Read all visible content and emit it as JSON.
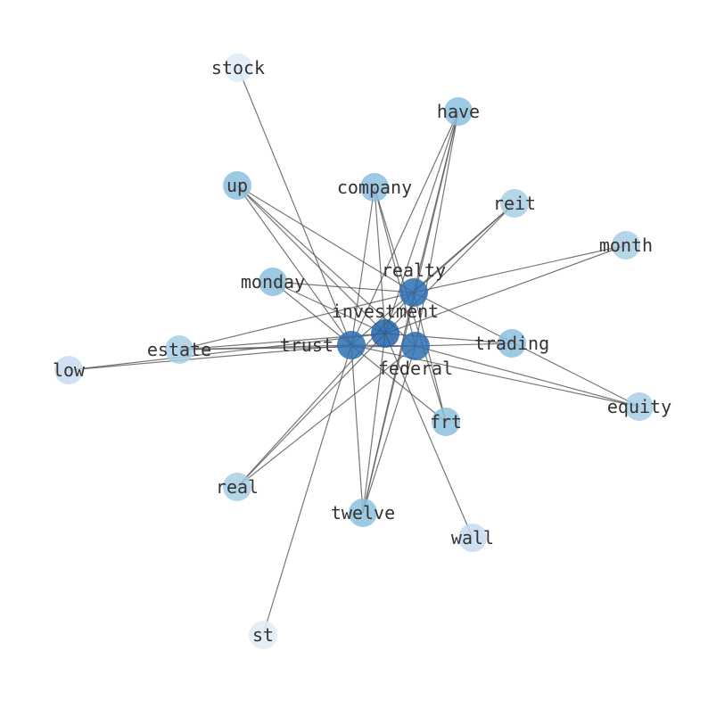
{
  "graph": {
    "nodes": [
      {
        "id": "stock",
        "label": "stock",
        "color": "#deebf7"
      },
      {
        "id": "have",
        "label": "have",
        "color": "#8dc0de"
      },
      {
        "id": "up",
        "label": "up",
        "color": "#8dc0de"
      },
      {
        "id": "company",
        "label": "company",
        "color": "#8dc0de"
      },
      {
        "id": "reit",
        "label": "reit",
        "color": "#a8cee4"
      },
      {
        "id": "month",
        "label": "month",
        "color": "#a8cee4"
      },
      {
        "id": "monday",
        "label": "monday",
        "color": "#8dc0de"
      },
      {
        "id": "realty",
        "label": "realty",
        "color": "#2e6eb0"
      },
      {
        "id": "investment",
        "label": "investment",
        "color": "#2462a6"
      },
      {
        "id": "trust",
        "label": "trust",
        "color": "#2e6eb0"
      },
      {
        "id": "federal",
        "label": "federal",
        "color": "#2e6eb0"
      },
      {
        "id": "trading",
        "label": "trading",
        "color": "#8dc0de"
      },
      {
        "id": "estate",
        "label": "estate",
        "color": "#a8cee4"
      },
      {
        "id": "low",
        "label": "low",
        "color": "#c6dbef"
      },
      {
        "id": "frt",
        "label": "frt",
        "color": "#8dc0de"
      },
      {
        "id": "equity",
        "label": "equity",
        "color": "#a8cee4"
      },
      {
        "id": "real",
        "label": "real",
        "color": "#a8cee4"
      },
      {
        "id": "twelve",
        "label": "twelve",
        "color": "#8dc0de"
      },
      {
        "id": "wall",
        "label": "wall",
        "color": "#c6dbef"
      },
      {
        "id": "st",
        "label": "st",
        "color": "#deebf7"
      }
    ],
    "edges": [
      [
        "stock",
        "trust"
      ],
      [
        "have",
        "realty"
      ],
      [
        "have",
        "investment"
      ],
      [
        "have",
        "federal"
      ],
      [
        "have",
        "trust"
      ],
      [
        "have",
        "twelve"
      ],
      [
        "up",
        "realty"
      ],
      [
        "up",
        "investment"
      ],
      [
        "up",
        "trust"
      ],
      [
        "up",
        "federal"
      ],
      [
        "company",
        "investment"
      ],
      [
        "company",
        "federal"
      ],
      [
        "company",
        "trust"
      ],
      [
        "company",
        "frt"
      ],
      [
        "reit",
        "realty"
      ],
      [
        "reit",
        "investment"
      ],
      [
        "reit",
        "trust"
      ],
      [
        "month",
        "realty"
      ],
      [
        "month",
        "investment"
      ],
      [
        "monday",
        "realty"
      ],
      [
        "monday",
        "investment"
      ],
      [
        "monday",
        "trust"
      ],
      [
        "realty",
        "equity"
      ],
      [
        "realty",
        "frt"
      ],
      [
        "realty",
        "twelve"
      ],
      [
        "realty",
        "real"
      ],
      [
        "realty",
        "estate"
      ],
      [
        "investment",
        "estate"
      ],
      [
        "investment",
        "low"
      ],
      [
        "investment",
        "trading"
      ],
      [
        "investment",
        "wall"
      ],
      [
        "investment",
        "twelve"
      ],
      [
        "investment",
        "real"
      ],
      [
        "trust",
        "low"
      ],
      [
        "trust",
        "estate"
      ],
      [
        "trust",
        "st"
      ],
      [
        "trust",
        "twelve"
      ],
      [
        "trust",
        "frt"
      ],
      [
        "trust",
        "federal"
      ],
      [
        "trust",
        "equity"
      ],
      [
        "federal",
        "equity"
      ],
      [
        "federal",
        "trading"
      ],
      [
        "federal",
        "real"
      ],
      [
        "federal",
        "twelve"
      ],
      [
        "federal",
        "estate"
      ]
    ],
    "edge_color": "#555555"
  }
}
